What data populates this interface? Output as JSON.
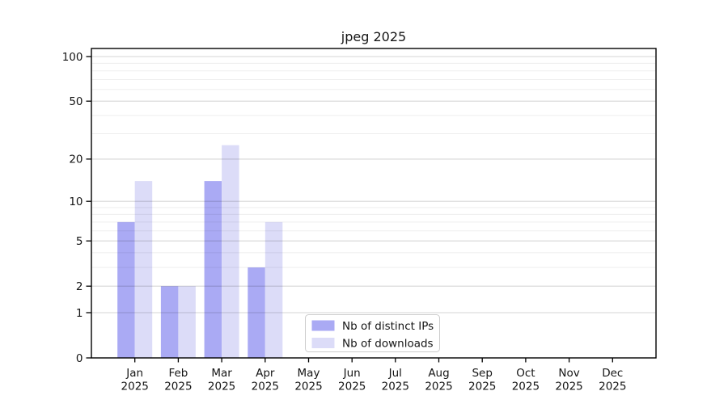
{
  "chart_data": {
    "type": "bar",
    "title": "jpeg 2025",
    "year": "2025",
    "categories": [
      "Jan",
      "Feb",
      "Mar",
      "Apr",
      "May",
      "Jun",
      "Jul",
      "Aug",
      "Sep",
      "Oct",
      "Nov",
      "Dec"
    ],
    "series": [
      {
        "name": "Nb of distinct IPs",
        "color": "#aaaaf4",
        "values": [
          7,
          2,
          14,
          3,
          0,
          0,
          0,
          0,
          0,
          0,
          0,
          0
        ]
      },
      {
        "name": "Nb of downloads",
        "color": "#dcdcf8",
        "values": [
          14,
          2,
          25,
          7,
          0,
          0,
          0,
          0,
          0,
          0,
          0,
          0
        ]
      }
    ],
    "y_ticks": [
      0,
      1,
      2,
      5,
      10,
      20,
      50,
      100
    ],
    "y_minor_gridlines": [
      3,
      4,
      6,
      7,
      8,
      9,
      30,
      40,
      60,
      70,
      80,
      90
    ],
    "scale": "log10(1+x)",
    "ylim": [
      0,
      113
    ],
    "grid": "on",
    "legend_position": "bottom-center-inside",
    "colors": {
      "background": "#ffffff",
      "axis_frame": "#000000",
      "major_grid": "#d6d6d6",
      "minor_grid": "#eeeeee",
      "legend_border": "#cccccc"
    }
  }
}
